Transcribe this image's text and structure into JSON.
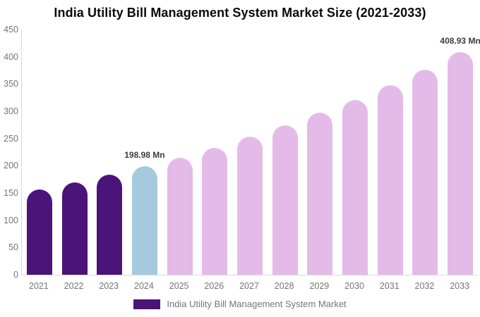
{
  "title": "India Utility Bill Management System Market Size (2021-2033)",
  "legend": {
    "label": "India Utility Bill Management System Market",
    "swatch_color": "#4a1478"
  },
  "colors": {
    "historical_purple": "#4a1478",
    "current_year_blue": "#a5cade",
    "forecast_pink": "#e4bbe8",
    "axis_line": "#d9d9d9",
    "tick_text": "#757575",
    "value_label_text": "#3c3c3c",
    "title_text": "#0a0a0a"
  },
  "y_axis": {
    "ticks": [
      450,
      400,
      350,
      300,
      250,
      200,
      150,
      100,
      50,
      0
    ],
    "max": 450
  },
  "chart_data": {
    "type": "bar",
    "title": "India Utility Bill Management System Market Size (2021-2033)",
    "categories": [
      "2021",
      "2022",
      "2023",
      "2024",
      "2025",
      "2026",
      "2027",
      "2028",
      "2029",
      "2030",
      "2031",
      "2032",
      "2033"
    ],
    "values": [
      156,
      170,
      184,
      198.98,
      215,
      233,
      253,
      274,
      297,
      321,
      348,
      377,
      408.93
    ],
    "unit": "Mn",
    "bar_colors": [
      "#4a1478",
      "#4a1478",
      "#4a1478",
      "#a5cade",
      "#e4bbe8",
      "#e4bbe8",
      "#e4bbe8",
      "#e4bbe8",
      "#e4bbe8",
      "#e4bbe8",
      "#e4bbe8",
      "#e4bbe8",
      "#e4bbe8"
    ],
    "annotations": [
      {
        "category": "2024",
        "index": 3,
        "text": "198.98 Mn"
      },
      {
        "category": "2033",
        "index": 12,
        "text": "408.93 Mn"
      }
    ],
    "xlabel": "",
    "ylabel": "",
    "ylim": [
      0,
      450
    ],
    "grid": false,
    "legend_position": "bottom",
    "legend_entries": [
      "India Utility Bill Management System Market"
    ]
  }
}
